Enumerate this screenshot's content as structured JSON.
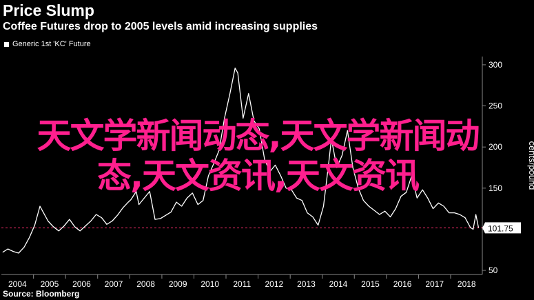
{
  "header": {
    "title": "Price Slump",
    "subtitle": "Coffee Futures drop to 2005 levels amid increasing supplies"
  },
  "footer": {
    "source": "Source: Bloomberg"
  },
  "overlay": {
    "watermark_text": "天文学新闻动态,天文学新闻动态,天文资讯,天文资讯"
  },
  "colors": {
    "background": "#000000",
    "line": "#ffffff",
    "reference_line": "#ff2f6d",
    "watermark": "#ff1f8e",
    "grid": "#555555"
  },
  "chart_data": {
    "type": "line",
    "title": "Price Slump",
    "subtitle": "Coffee Futures drop to 2005 levels amid increasing supplies",
    "xlabel": "",
    "ylabel": "cents/pound",
    "x_tick_labels": [
      "2004",
      "2005",
      "2006",
      "2007",
      "2008",
      "2009",
      "2010",
      "2011",
      "2012",
      "2013",
      "2014",
      "2015",
      "2016",
      "2017",
      "2018"
    ],
    "y_ticks": [
      50,
      100,
      150,
      200,
      250,
      300
    ],
    "ylim": [
      45,
      310
    ],
    "xlim": [
      "2004-01",
      "2018-12"
    ],
    "grid": false,
    "legend_position": "top-left",
    "series": [
      {
        "name": "Generic 1st 'KC' Future",
        "points": [
          [
            "2004-01",
            72
          ],
          [
            "2004-03",
            76
          ],
          [
            "2004-05",
            73
          ],
          [
            "2004-07",
            71
          ],
          [
            "2004-09",
            78
          ],
          [
            "2004-11",
            90
          ],
          [
            "2005-01",
            105
          ],
          [
            "2005-03",
            128
          ],
          [
            "2005-04",
            122
          ],
          [
            "2005-06",
            110
          ],
          [
            "2005-08",
            103
          ],
          [
            "2005-10",
            98
          ],
          [
            "2005-12",
            104
          ],
          [
            "2006-02",
            112
          ],
          [
            "2006-04",
            103
          ],
          [
            "2006-06",
            98
          ],
          [
            "2006-08",
            104
          ],
          [
            "2006-10",
            110
          ],
          [
            "2006-12",
            118
          ],
          [
            "2007-02",
            114
          ],
          [
            "2007-04",
            106
          ],
          [
            "2007-06",
            110
          ],
          [
            "2007-08",
            117
          ],
          [
            "2007-10",
            126
          ],
          [
            "2007-12",
            133
          ],
          [
            "2008-01",
            136
          ],
          [
            "2008-03",
            146
          ],
          [
            "2008-04",
            130
          ],
          [
            "2008-06",
            138
          ],
          [
            "2008-08",
            146
          ],
          [
            "2008-10",
            112
          ],
          [
            "2008-12",
            113
          ],
          [
            "2009-02",
            117
          ],
          [
            "2009-04",
            121
          ],
          [
            "2009-06",
            133
          ],
          [
            "2009-08",
            128
          ],
          [
            "2009-10",
            138
          ],
          [
            "2009-12",
            144
          ],
          [
            "2010-02",
            130
          ],
          [
            "2010-04",
            135
          ],
          [
            "2010-06",
            165
          ],
          [
            "2010-08",
            180
          ],
          [
            "2010-10",
            196
          ],
          [
            "2010-12",
            235
          ],
          [
            "2011-02",
            265
          ],
          [
            "2011-04",
            296
          ],
          [
            "2011-05",
            290
          ],
          [
            "2011-07",
            235
          ],
          [
            "2011-09",
            265
          ],
          [
            "2011-11",
            232
          ],
          [
            "2012-01",
            222
          ],
          [
            "2012-03",
            185
          ],
          [
            "2012-05",
            170
          ],
          [
            "2012-07",
            178
          ],
          [
            "2012-09",
            165
          ],
          [
            "2012-11",
            150
          ],
          [
            "2013-01",
            148
          ],
          [
            "2013-03",
            138
          ],
          [
            "2013-05",
            135
          ],
          [
            "2013-07",
            120
          ],
          [
            "2013-09",
            115
          ],
          [
            "2013-11",
            105
          ],
          [
            "2014-01",
            128
          ],
          [
            "2014-03",
            180
          ],
          [
            "2014-04",
            210
          ],
          [
            "2014-06",
            175
          ],
          [
            "2014-08",
            190
          ],
          [
            "2014-10",
            220
          ],
          [
            "2014-12",
            175
          ],
          [
            "2015-02",
            150
          ],
          [
            "2015-04",
            135
          ],
          [
            "2015-06",
            128
          ],
          [
            "2015-08",
            123
          ],
          [
            "2015-10",
            118
          ],
          [
            "2015-12",
            122
          ],
          [
            "2016-02",
            115
          ],
          [
            "2016-04",
            125
          ],
          [
            "2016-06",
            140
          ],
          [
            "2016-08",
            145
          ],
          [
            "2016-10",
            165
          ],
          [
            "2016-12",
            138
          ],
          [
            "2017-02",
            148
          ],
          [
            "2017-04",
            138
          ],
          [
            "2017-06",
            125
          ],
          [
            "2017-08",
            132
          ],
          [
            "2017-10",
            128
          ],
          [
            "2017-12",
            120
          ],
          [
            "2018-02",
            120
          ],
          [
            "2018-04",
            118
          ],
          [
            "2018-06",
            114
          ],
          [
            "2018-08",
            102
          ],
          [
            "2018-09",
            100
          ],
          [
            "2018-10",
            118
          ],
          [
            "2018-11",
            101.75
          ]
        ]
      }
    ],
    "reference_line": {
      "value": 101.75,
      "label": "101.75"
    }
  }
}
